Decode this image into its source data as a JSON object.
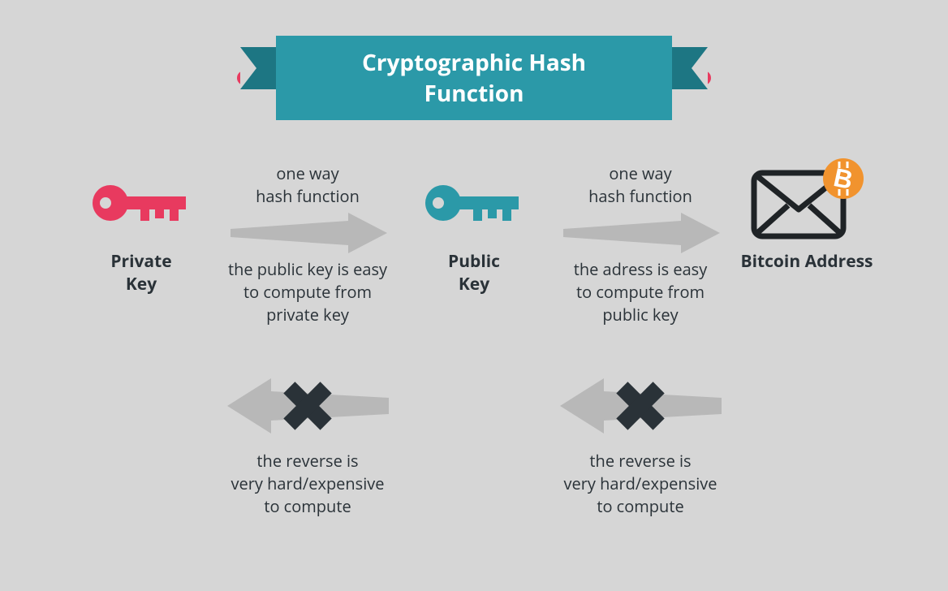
{
  "type": "infographic",
  "background_color": "#d6d6d6",
  "banner": {
    "title": "Cryptographic Hash Function",
    "bg_color": "#2b99a8",
    "fold_color": "#1d7683",
    "text_color": "#ffffff",
    "title_fontsize": 28,
    "dot_color": "#e83a5f",
    "dot_size": 18
  },
  "nodes": [
    {
      "id": "private-key",
      "label": "Private\nKey",
      "icon": "key",
      "icon_color": "#e83a5f"
    },
    {
      "id": "public-key",
      "label": "Public\nKey",
      "icon": "key",
      "icon_color": "#2b99a8"
    },
    {
      "id": "bitcoin-address",
      "label": "Bitcoin Address",
      "icon": "envelope-bitcoin",
      "icon_color": "#1f2326",
      "badge_color": "#f1932e"
    }
  ],
  "forward_arrows": [
    {
      "top_text": "one way\nhash function",
      "bottom_text": "the public key is easy\nto compute from\nprivate key",
      "arrow_color": "#b8b8b8"
    },
    {
      "top_text": "one way\nhash function",
      "bottom_text": "the adress is easy\nto compute from\npublic key",
      "arrow_color": "#b8b8b8"
    }
  ],
  "reverse_arrows": [
    {
      "text": "the reverse is\nvery hard/expensive\nto compute",
      "arrow_color": "#b8b8b8",
      "x_color": "#2a3238"
    },
    {
      "text": "the reverse is\nvery hard/expensive\nto compute",
      "arrow_color": "#b8b8b8",
      "x_color": "#2a3238"
    }
  ],
  "text_color": "#2a3238",
  "body_fontsize": 20,
  "label_fontsize": 21
}
